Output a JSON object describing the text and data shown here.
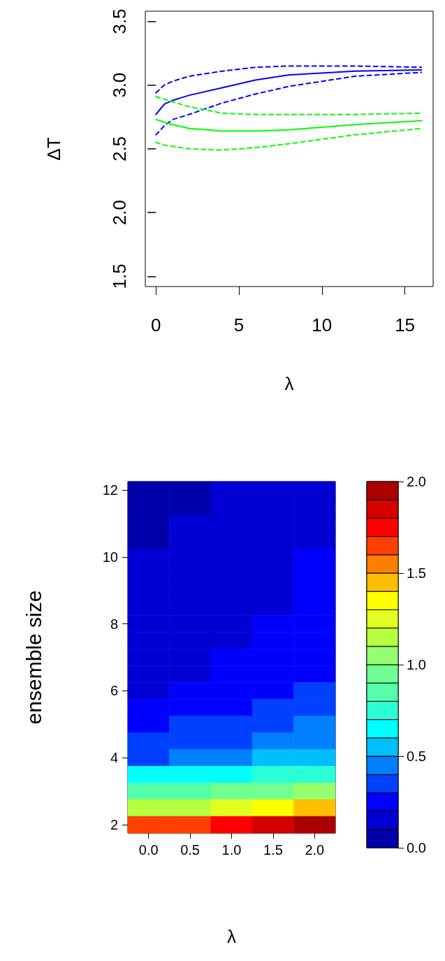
{
  "chart_data": [
    {
      "type": "line",
      "xlabel": "λ",
      "ylabel": "ΔT",
      "x": [
        0,
        0.5,
        1,
        2,
        4,
        6,
        8,
        12,
        16
      ],
      "xlim": [
        -0.64,
        16.7
      ],
      "xticks": [
        0,
        5,
        10,
        15
      ],
      "ylim": [
        1.42,
        3.58
      ],
      "yticks": [
        1.5,
        {
          "value": 2,
          "label": "2.0"
        },
        2.5,
        {
          "value": 3,
          "label": "3.0"
        },
        3.5
      ],
      "grid": false,
      "series": [
        {
          "color": "#0000ff",
          "line_style": "solid",
          "values": [
            2.77,
            2.85,
            2.88,
            2.92,
            2.98,
            3.04,
            3.08,
            3.11,
            3.12
          ]
        },
        {
          "color": "#0000ff",
          "line_style": "dashed",
          "values": [
            2.94,
            3.0,
            3.03,
            3.07,
            3.11,
            3.14,
            3.15,
            3.15,
            3.14
          ]
        },
        {
          "color": "#0000ff",
          "line_style": "dashed",
          "values": [
            2.61,
            2.68,
            2.73,
            2.77,
            2.86,
            2.93,
            2.99,
            3.07,
            3.1
          ]
        },
        {
          "color": "#00ff00",
          "line_style": "solid",
          "values": [
            2.73,
            2.71,
            2.69,
            2.66,
            2.64,
            2.64,
            2.65,
            2.69,
            2.72
          ]
        },
        {
          "color": "#00ff00",
          "line_style": "dashed",
          "values": [
            2.91,
            2.89,
            2.87,
            2.83,
            2.78,
            2.77,
            2.77,
            2.77,
            2.78
          ]
        },
        {
          "color": "#00ff00",
          "line_style": "dashed",
          "values": [
            2.55,
            2.53,
            2.52,
            2.5,
            2.49,
            2.51,
            2.54,
            2.61,
            2.66
          ]
        }
      ]
    },
    {
      "type": "heatmap",
      "xlabel": "λ",
      "ylabel": "ensemble size",
      "categories": [
        "0.0",
        "0.5",
        "1.0",
        "1.5",
        "2.0"
      ],
      "y_categories": [
        "12",
        null,
        null,
        null,
        "10",
        null,
        null,
        null,
        "8",
        null,
        null,
        null,
        "6",
        null,
        null,
        null,
        "4",
        null,
        null,
        null,
        "2"
      ],
      "clim": [
        0,
        2
      ],
      "cticks": [
        {
          "value": 0,
          "label": "0.0"
        },
        0.5,
        {
          "value": 1,
          "label": "1.0"
        },
        1.5,
        {
          "value": 2,
          "label": "2.0"
        }
      ],
      "colors": [
        "#0000aa",
        "#0000d4",
        "#0000ff",
        "#0040ff",
        "#0080ff",
        "#00bfff",
        "#00ffff",
        "#2affd5",
        "#55ffaa",
        "#70ff90",
        "#95ff70",
        "#b5ff40",
        "#dfff20",
        "#ffff00",
        "#ffbf00",
        "#ff8000",
        "#ff4000",
        "#ff0000",
        "#d40000",
        "#aa0000"
      ],
      "cells": [
        [
          0.06,
          0.09,
          0.11,
          0.13,
          0.16
        ],
        [
          0.07,
          0.09,
          0.12,
          0.14,
          0.17
        ],
        [
          0.08,
          0.1,
          0.12,
          0.15,
          0.18
        ],
        [
          0.09,
          0.11,
          0.13,
          0.16,
          0.19
        ],
        [
          0.1,
          0.11,
          0.13,
          0.17,
          0.2
        ],
        [
          0.11,
          0.12,
          0.14,
          0.18,
          0.21
        ],
        [
          0.12,
          0.12,
          0.15,
          0.19,
          0.22
        ],
        [
          0.12,
          0.13,
          0.16,
          0.19,
          0.23
        ],
        [
          0.13,
          0.14,
          0.17,
          0.2,
          0.24
        ],
        [
          0.14,
          0.15,
          0.19,
          0.22,
          0.25
        ],
        [
          0.15,
          0.17,
          0.21,
          0.24,
          0.27
        ],
        [
          0.17,
          0.19,
          0.23,
          0.26,
          0.3
        ],
        [
          0.19,
          0.21,
          0.26,
          0.29,
          0.33
        ],
        [
          0.24,
          0.26,
          0.3,
          0.33,
          0.36
        ],
        [
          0.28,
          0.31,
          0.34,
          0.37,
          0.4
        ],
        [
          0.33,
          0.36,
          0.38,
          0.43,
          0.45
        ],
        [
          0.39,
          0.41,
          0.45,
          0.5,
          0.56
        ],
        [
          0.63,
          0.65,
          0.68,
          0.72,
          0.75
        ],
        [
          0.8,
          0.85,
          0.9,
          0.95,
          1.02
        ],
        [
          1.15,
          1.2,
          1.25,
          1.35,
          1.45
        ],
        [
          1.62,
          1.66,
          1.72,
          1.85,
          1.97
        ]
      ]
    }
  ]
}
